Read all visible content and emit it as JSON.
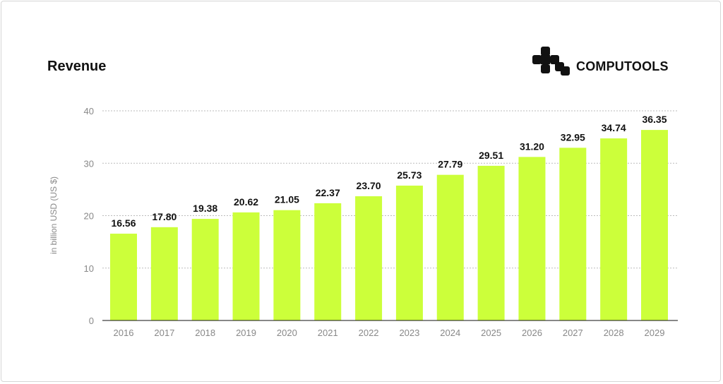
{
  "logo_text": "COMPUTOOLS",
  "chart_data": {
    "type": "bar",
    "title": "Revenue",
    "xlabel": "",
    "ylabel": "in billion USD (US $)",
    "ylim": [
      0,
      40
    ],
    "yticks": [
      0,
      10,
      20,
      30,
      40
    ],
    "grid": true,
    "bar_color": "#ccff3a",
    "categories": [
      "2016",
      "2017",
      "2018",
      "2019",
      "2020",
      "2021",
      "2022",
      "2023",
      "2024",
      "2025",
      "2026",
      "2027",
      "2028",
      "2029"
    ],
    "values": [
      16.56,
      17.8,
      19.38,
      20.62,
      21.05,
      22.37,
      23.7,
      25.73,
      27.79,
      29.51,
      31.2,
      32.95,
      34.74,
      36.35
    ],
    "data_labels": [
      "16.56",
      "17.80",
      "19.38",
      "20.62",
      "21.05",
      "22.37",
      "23.70",
      "25.73",
      "27.79",
      "29.51",
      "31.20",
      "32.95",
      "34.74",
      "36.35"
    ]
  }
}
